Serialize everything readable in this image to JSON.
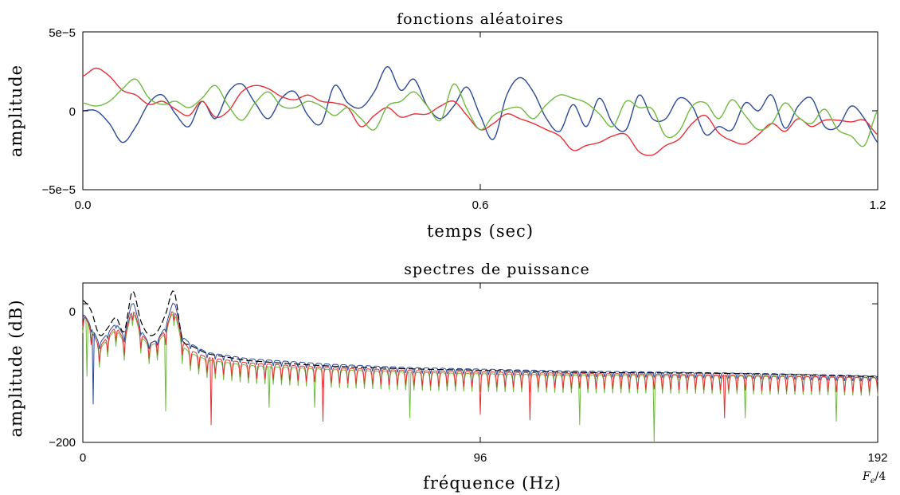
{
  "chart_data": [
    {
      "type": "line",
      "title": "fonctions aléatoires",
      "xlabel": "temps (sec)",
      "ylabel": "amplitude",
      "xlim": [
        0,
        1.2
      ],
      "ylim": [
        -5e-05,
        5e-05
      ],
      "x_ticks": [
        {
          "v": 0,
          "label": "0.0"
        },
        {
          "v": 0.6,
          "label": "0.6"
        },
        {
          "v": 1.2,
          "label": "1.2"
        }
      ],
      "y_ticks": [
        {
          "v": 5e-05,
          "label": "5e−5"
        },
        {
          "v": 0,
          "label": "0"
        },
        {
          "v": -5e-05,
          "label": "−5e−5"
        }
      ],
      "grid": false,
      "series": [
        {
          "color": "#2b4a9a",
          "x": [
            0,
            0.02,
            0.04,
            0.06,
            0.08,
            0.1,
            0.12,
            0.14,
            0.16,
            0.18,
            0.2,
            0.22,
            0.24,
            0.26,
            0.28,
            0.3,
            0.32,
            0.34,
            0.36,
            0.38,
            0.4,
            0.42,
            0.44,
            0.46,
            0.48,
            0.5,
            0.52,
            0.54,
            0.56,
            0.58,
            0.6,
            0.62,
            0.64,
            0.66,
            0.68,
            0.7,
            0.72,
            0.74,
            0.76,
            0.78,
            0.8,
            0.82,
            0.84,
            0.86,
            0.88,
            0.9,
            0.92,
            0.94,
            0.96,
            0.98,
            1.0,
            1.02,
            1.04,
            1.06,
            1.08,
            1.1,
            1.12,
            1.14,
            1.16,
            1.18,
            1.2
          ],
          "values": [
            0,
            0,
            -0.8,
            -2.0,
            -1.0,
            0.5,
            1.0,
            -0.2,
            -1.0,
            0.6,
            -0.5,
            1.2,
            1.7,
            0.5,
            -0.5,
            0.8,
            1.2,
            -0.3,
            -0.8,
            1.6,
            0.5,
            0.2,
            1.2,
            2.8,
            1.3,
            2.0,
            0.3,
            -0.5,
            0.3,
            1.5,
            -0.3,
            -1.8,
            1.0,
            2.1,
            1.2,
            -0.5,
            -1.3,
            0.4,
            -1.0,
            0.8,
            -0.8,
            -1.2,
            1.0,
            -0.5,
            -0.5,
            0.8,
            0.3,
            -1.5,
            -1.0,
            -1.2,
            0.5,
            0,
            1.0,
            -1.1,
            0.3,
            0.8,
            -1.0,
            -1.0,
            0.3,
            -0.5,
            -2.0
          ]
        },
        {
          "color": "#e53036",
          "x": [
            0,
            0.02,
            0.04,
            0.06,
            0.08,
            0.1,
            0.12,
            0.14,
            0.16,
            0.18,
            0.2,
            0.22,
            0.24,
            0.26,
            0.28,
            0.3,
            0.32,
            0.34,
            0.36,
            0.38,
            0.4,
            0.42,
            0.44,
            0.46,
            0.48,
            0.5,
            0.52,
            0.54,
            0.56,
            0.58,
            0.6,
            0.62,
            0.64,
            0.66,
            0.68,
            0.7,
            0.72,
            0.74,
            0.76,
            0.78,
            0.8,
            0.82,
            0.84,
            0.86,
            0.88,
            0.9,
            0.92,
            0.94,
            0.96,
            0.98,
            1.0,
            1.02,
            1.04,
            1.06,
            1.08,
            1.1,
            1.12,
            1.14,
            1.16,
            1.18,
            1.2
          ],
          "values": [
            2.2,
            2.7,
            2.2,
            1.3,
            1.0,
            0.4,
            0.6,
            0.1,
            -0.3,
            0.6,
            -0.4,
            0,
            1.2,
            1.6,
            1.4,
            0.9,
            0.7,
            1.0,
            0.6,
            0.5,
            0.2,
            -1.0,
            -0.3,
            0.2,
            -0.4,
            -0.2,
            -0.2,
            0.3,
            0.6,
            -0.3,
            -1.2,
            -0.8,
            -0.2,
            -0.5,
            -0.8,
            -1.2,
            -1.6,
            -2.5,
            -2.2,
            -2.0,
            -1.6,
            -1.5,
            -2.6,
            -2.8,
            -2.2,
            -1.8,
            -0.8,
            -0.3,
            -1.4,
            -1.9,
            -2.1,
            -1.5,
            -0.8,
            -1.3,
            -0.5,
            -1.0,
            -0.6,
            -0.6,
            -0.7,
            -0.6,
            -1.5
          ]
        },
        {
          "color": "#6fba3f",
          "x": [
            0,
            0.02,
            0.04,
            0.06,
            0.08,
            0.1,
            0.12,
            0.14,
            0.16,
            0.18,
            0.2,
            0.22,
            0.24,
            0.26,
            0.28,
            0.3,
            0.32,
            0.34,
            0.36,
            0.38,
            0.4,
            0.42,
            0.44,
            0.46,
            0.48,
            0.5,
            0.52,
            0.54,
            0.56,
            0.58,
            0.6,
            0.62,
            0.64,
            0.66,
            0.68,
            0.7,
            0.72,
            0.74,
            0.76,
            0.78,
            0.8,
            0.82,
            0.84,
            0.86,
            0.88,
            0.9,
            0.92,
            0.94,
            0.96,
            0.98,
            1.0,
            1.02,
            1.04,
            1.06,
            1.08,
            1.1,
            1.12,
            1.14,
            1.16,
            1.18,
            1.2
          ],
          "values": [
            0.5,
            0.3,
            0.6,
            1.4,
            2.0,
            0.8,
            0.4,
            0.6,
            0.2,
            0.8,
            1.6,
            0.3,
            -0.6,
            0.5,
            1.2,
            0.3,
            0.2,
            0.6,
            0.3,
            -0.3,
            0.2,
            -0.5,
            -1.2,
            0.3,
            0.6,
            1.2,
            0.3,
            -0.6,
            1.7,
            0.1,
            -1.2,
            -0.3,
            0.1,
            0.2,
            -0.5,
            0.4,
            1.0,
            0.8,
            0.5,
            -0.2,
            -1.0,
            0.6,
            0.2,
            0.1,
            -1.6,
            -1.3,
            0.3,
            0.5,
            -0.5,
            0.7,
            -0.3,
            -1.2,
            -0.8,
            0.5,
            -0.4,
            -0.8,
            0.1,
            -1.2,
            -1.6,
            -2.2,
            0
          ]
        }
      ]
    },
    {
      "type": "line",
      "title": "spectres de puissance",
      "xlabel": "fréquence (Hz)",
      "ylabel": "amplitude (dB)",
      "xlim": [
        0,
        192
      ],
      "ylim": [
        -200,
        30
      ],
      "x_ticks": [
        {
          "v": 0,
          "label": "0"
        },
        {
          "v": 96,
          "label": "96"
        },
        {
          "v": 192,
          "label": "192"
        }
      ],
      "y_ticks": [
        {
          "v": 0,
          "label": "0"
        },
        {
          "v": -200,
          "label": "−200"
        }
      ],
      "annotation": {
        "text": "F",
        "sub": "e",
        "tail": "/4"
      },
      "grid": false,
      "envelope": {
        "color": "#000000",
        "style": "dashed",
        "x": [
          0,
          2,
          4,
          6,
          8,
          10,
          12,
          14,
          16,
          18,
          20,
          22,
          24,
          26,
          30,
          40,
          60,
          80,
          96,
          120,
          150,
          170,
          192
        ],
        "values": [
          5,
          -10,
          -45,
          -35,
          -20,
          -40,
          18,
          -25,
          -45,
          -40,
          -15,
          18,
          -50,
          -60,
          -72,
          -82,
          -90,
          -94,
          -96,
          -99,
          -100,
          -102,
          -105
        ]
      },
      "series": [
        {
          "color": "#2b4a9a",
          "x": [
            0,
            2,
            4,
            6,
            8,
            10,
            12,
            14,
            16,
            18,
            20,
            22,
            24,
            26,
            30,
            40,
            60,
            80,
            96,
            120,
            150,
            170,
            192
          ],
          "values": [
            -15,
            -35,
            -60,
            -45,
            -30,
            -50,
            5,
            -40,
            -60,
            -55,
            -35,
            5,
            -50,
            -60,
            -73,
            -82,
            -90,
            -95,
            -97,
            -100,
            -102,
            -104,
            -107
          ],
          "ripple": 8,
          "deep_nulls": [
            [
              2.5,
              -145
            ]
          ]
        },
        {
          "color": "#e53036",
          "x": [
            0,
            2,
            4,
            6,
            8,
            10,
            12,
            14,
            16,
            18,
            20,
            22,
            24,
            26,
            30,
            40,
            60,
            80,
            96,
            120,
            150,
            170,
            192
          ],
          "values": [
            -20,
            -45,
            -70,
            -55,
            -40,
            -60,
            -10,
            -50,
            -65,
            -60,
            -45,
            -10,
            -60,
            -75,
            -85,
            -93,
            -100,
            -104,
            -106,
            -108,
            -110,
            -112,
            -114
          ],
          "ripple": 22,
          "deep_nulls": [
            [
              31,
              -175
            ],
            [
              58,
              -170
            ],
            [
              96,
              -160
            ],
            [
              108,
              -168
            ],
            [
              155,
              -165
            ]
          ]
        },
        {
          "color": "#6fba3f",
          "x": [
            0,
            2,
            4,
            6,
            8,
            10,
            12,
            14,
            16,
            18,
            20,
            22,
            24,
            26,
            30,
            40,
            60,
            80,
            96,
            120,
            150,
            170,
            192
          ],
          "values": [
            -25,
            -40,
            -75,
            -60,
            -45,
            -65,
            -15,
            -55,
            -70,
            -65,
            -50,
            -15,
            -70,
            -80,
            -90,
            -98,
            -104,
            -108,
            -110,
            -112,
            -113,
            -114,
            -116
          ],
          "ripple": 26,
          "deep_nulls": [
            [
              1,
              -105
            ],
            [
              20,
              -155
            ],
            [
              45,
              -150
            ],
            [
              56,
              -150
            ],
            [
              79,
              -165
            ],
            [
              120,
              -175
            ],
            [
              138,
              -200
            ],
            [
              160,
              -165
            ],
            [
              182,
              -170
            ]
          ]
        }
      ]
    }
  ]
}
